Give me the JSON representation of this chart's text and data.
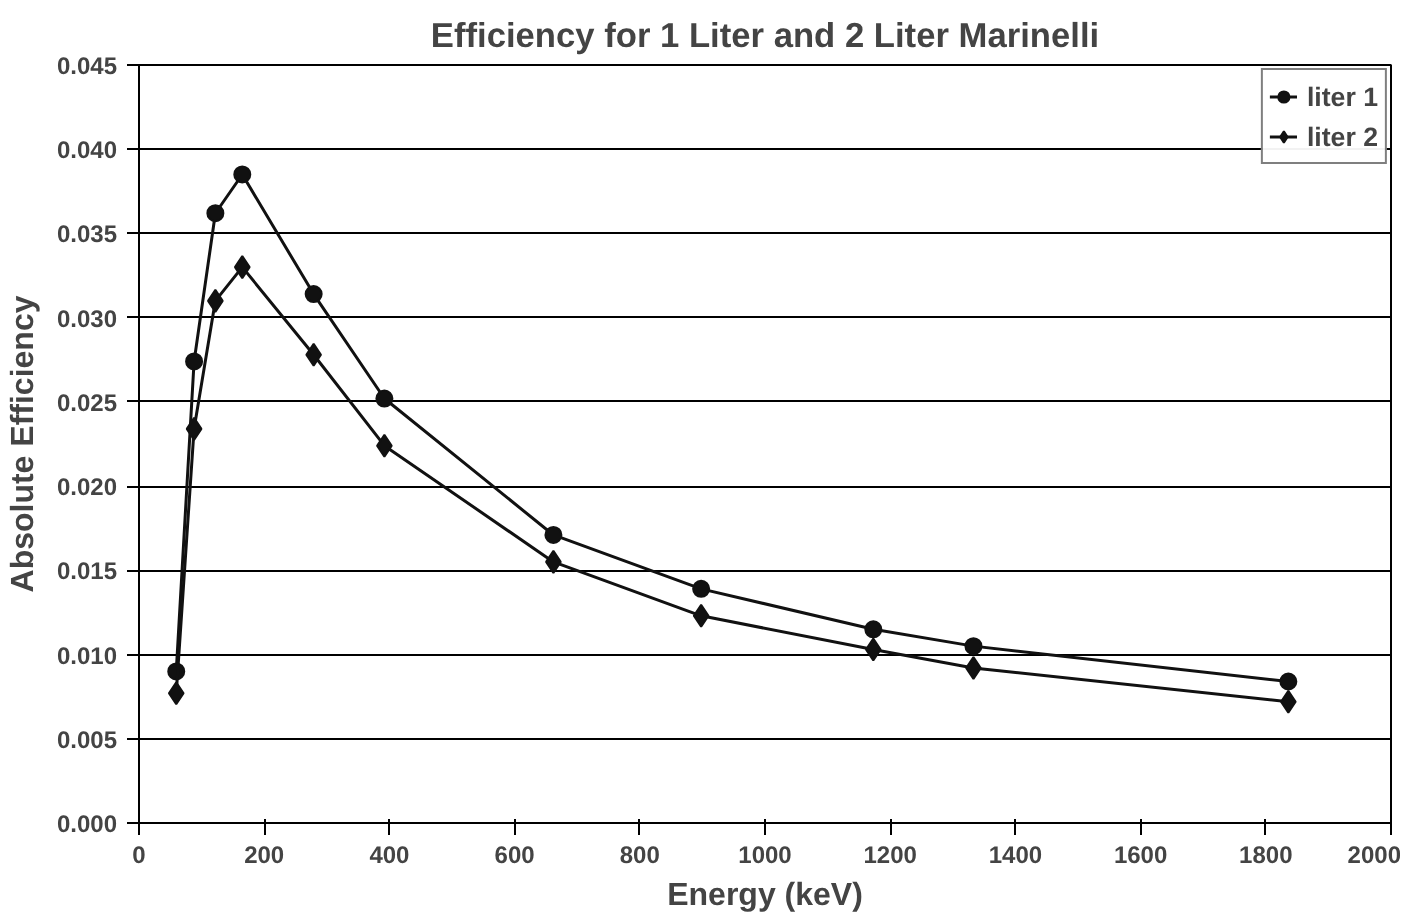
{
  "chart_data": {
    "type": "line",
    "title": "Efficiency for 1 Liter and 2 Liter Marinelli",
    "xlabel": "Energy (keV)",
    "ylabel": "Absolute Efficiency",
    "x": [
      59.5,
      88,
      122,
      165,
      279,
      392,
      662,
      898,
      1173,
      1333,
      1836
    ],
    "series": [
      {
        "name": "liter 1",
        "color": "#111111",
        "marker": "circle",
        "values": [
          0.009,
          0.0274,
          0.0362,
          0.0385,
          0.0314,
          0.0252,
          0.0171,
          0.0139,
          0.0115,
          0.0105,
          0.0084
        ]
      },
      {
        "name": "liter 2",
        "color": "#111111",
        "marker": "diamond",
        "values": [
          0.0077,
          0.0234,
          0.031,
          0.033,
          0.0278,
          0.0224,
          0.0155,
          0.0123,
          0.0103,
          0.0092,
          0.0072
        ]
      }
    ],
    "xlim": [
      0,
      2000
    ],
    "xticks": [
      0,
      200,
      400,
      600,
      800,
      1000,
      1200,
      1400,
      1600,
      1800,
      2000
    ],
    "ylim": [
      0,
      0.045
    ],
    "yticks": [
      {
        "value": 0,
        "label": "0.000"
      },
      {
        "value": 0.005,
        "label": "0.005"
      },
      {
        "value": 0.01,
        "label": "0.010"
      },
      {
        "value": 0.015,
        "label": "0.015"
      },
      {
        "value": 0.02,
        "label": "0.020"
      },
      {
        "value": 0.025,
        "label": "0.025"
      },
      {
        "value": 0.03,
        "label": "0.030"
      },
      {
        "value": 0.035,
        "label": "0.035"
      },
      {
        "value": 0.04,
        "label": "0.040"
      },
      {
        "value": 0.045,
        "label": "0.045"
      }
    ],
    "grid": "y",
    "legend": "top right",
    "line_style": "solid"
  }
}
